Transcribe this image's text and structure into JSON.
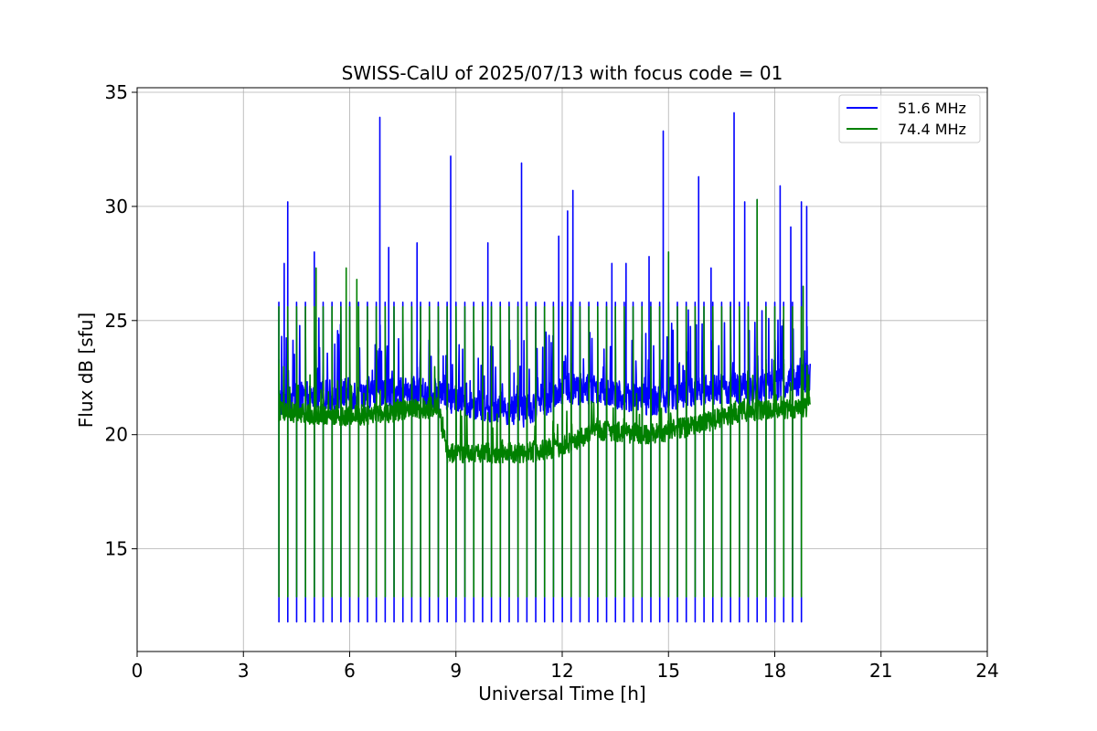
{
  "chart_data": {
    "type": "line",
    "title": "SWISS-CalU of 2025/07/13 with focus code = 01",
    "xlabel": "Universal Time [h]",
    "ylabel": "Flux dB [sfu]",
    "xlim": [
      0,
      24
    ],
    "ylim": [
      10.5,
      35.2
    ],
    "xticks": [
      0,
      3,
      6,
      9,
      12,
      15,
      18,
      21,
      24
    ],
    "yticks": [
      15,
      20,
      25,
      30,
      35
    ],
    "grid": true,
    "legend_position": "top-right",
    "series": [
      {
        "name": "51.6 MHz",
        "color": "#0000ff",
        "baseline": [
          [
            4.0,
            21.5
          ],
          [
            6.0,
            21.8
          ],
          [
            8.5,
            21.8
          ],
          [
            9.0,
            21.5
          ],
          [
            11.0,
            21.0
          ],
          [
            12.0,
            22.0
          ],
          [
            13.0,
            22.0
          ],
          [
            14.5,
            21.5
          ],
          [
            16.0,
            22.0
          ],
          [
            17.5,
            22.0
          ],
          [
            19.0,
            22.5
          ]
        ],
        "calibration_interval_h": 0.25,
        "calibration_low": 11.8,
        "calibration_high": 25.8,
        "peaks": [
          [
            4.15,
            27.5
          ],
          [
            4.25,
            30.2
          ],
          [
            5.0,
            28.0
          ],
          [
            6.85,
            33.9
          ],
          [
            7.1,
            28.2
          ],
          [
            7.9,
            28.4
          ],
          [
            8.85,
            32.2
          ],
          [
            9.9,
            28.4
          ],
          [
            10.85,
            31.9
          ],
          [
            11.9,
            28.7
          ],
          [
            12.15,
            29.8
          ],
          [
            12.3,
            30.7
          ],
          [
            13.4,
            27.5
          ],
          [
            13.8,
            27.5
          ],
          [
            14.45,
            27.8
          ],
          [
            14.85,
            33.3
          ],
          [
            15.85,
            31.3
          ],
          [
            16.2,
            27.3
          ],
          [
            16.85,
            34.1
          ],
          [
            17.15,
            30.2
          ],
          [
            17.5,
            30.3
          ],
          [
            18.15,
            30.9
          ],
          [
            18.45,
            29.1
          ],
          [
            18.75,
            30.2
          ],
          [
            18.9,
            30.0
          ]
        ]
      },
      {
        "name": "74.4 MHz",
        "color": "#008000",
        "baseline": [
          [
            4.0,
            21.0
          ],
          [
            6.0,
            20.8
          ],
          [
            8.5,
            21.2
          ],
          [
            8.75,
            19.2
          ],
          [
            11.0,
            19.2
          ],
          [
            12.0,
            19.5
          ],
          [
            13.0,
            20.2
          ],
          [
            14.5,
            20.0
          ],
          [
            16.0,
            20.5
          ],
          [
            17.0,
            21.0
          ],
          [
            19.0,
            21.2
          ]
        ],
        "calibration_interval_h": 0.25,
        "calibration_low": 12.9,
        "calibration_high": 25.6,
        "peaks": [
          [
            5.05,
            27.3
          ],
          [
            5.9,
            27.3
          ],
          [
            6.2,
            26.8
          ],
          [
            15.0,
            28.0
          ],
          [
            17.5,
            30.3
          ],
          [
            18.8,
            26.5
          ]
        ]
      }
    ]
  }
}
